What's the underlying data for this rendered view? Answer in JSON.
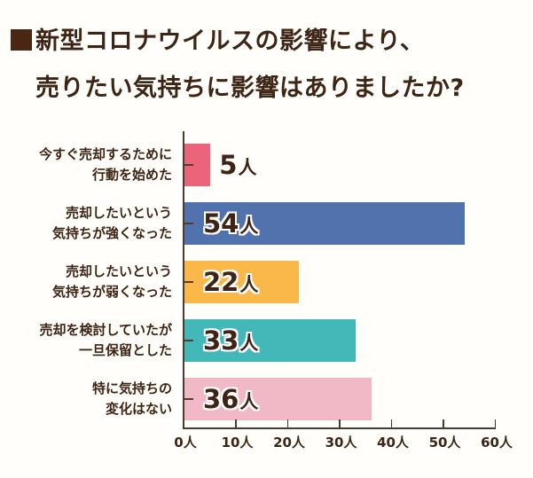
{
  "title": {
    "line1": "新型コロナウイルスの影響により、",
    "line2": "売りたい気持ちに影響はありましたか?"
  },
  "colors": {
    "text": "#3e2414",
    "axis": "#4a3a30",
    "bar1": "#ec6479",
    "bar2": "#5172ad",
    "bar3": "#fbb84a",
    "bar4": "#44b7b8",
    "bar5": "#f1b8c6"
  },
  "chart_data": {
    "type": "bar",
    "orientation": "horizontal",
    "title": "■新型コロナウイルスの影響により、売りたい気持ちに影響はありましたか?",
    "xlabel": "",
    "ylabel": "",
    "unit": "人",
    "xlim": [
      0,
      60
    ],
    "grid": false,
    "legend": null,
    "categories": [
      "今すぐ売却するために行動を始めた",
      "売却したいという気持ちが強くなった",
      "売却したいという気持ちが弱くなった",
      "売却を検討していたが一旦保留とした",
      "特に気持ちの変化はない"
    ],
    "values": [
      5,
      54,
      22,
      33,
      36
    ],
    "value_labels": [
      "5人",
      "54人",
      "22人",
      "33人",
      "36人"
    ],
    "x_ticks": [
      0,
      10,
      20,
      30,
      40,
      50,
      60
    ],
    "x_tick_labels": [
      "0人",
      "10人",
      "20人",
      "30人",
      "40人",
      "50人",
      "60人"
    ],
    "bar_colors": [
      "#ec6479",
      "#5172ad",
      "#fbb84a",
      "#44b7b8",
      "#f1b8c6"
    ]
  },
  "bars": [
    {
      "label_line1": "今すぐ売却するために",
      "label_line2": "行動を始めた",
      "value": "5",
      "unit": "人"
    },
    {
      "label_line1": "売却したいという",
      "label_line2": "気持ちが強くなった",
      "value": "54",
      "unit": "人"
    },
    {
      "label_line1": "売却したいという",
      "label_line2": "気持ちが弱くなった",
      "value": "22",
      "unit": "人"
    },
    {
      "label_line1": "売却を検討していたが",
      "label_line2": "一旦保留とした",
      "value": "33",
      "unit": "人"
    },
    {
      "label_line1": "特に気持ちの",
      "label_line2": "変化はない",
      "value": "36",
      "unit": "人"
    }
  ],
  "x_axis": {
    "ticks": [
      "0人",
      "10人",
      "20人",
      "30人",
      "40人",
      "50人",
      "60人"
    ]
  }
}
